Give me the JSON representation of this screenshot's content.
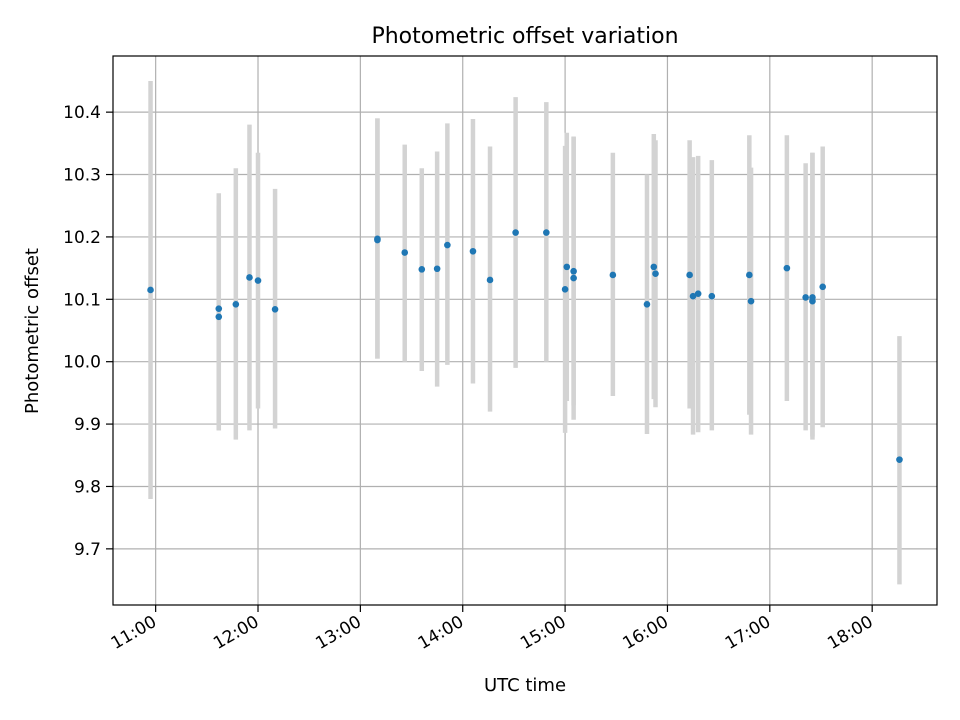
{
  "chart_data": {
    "type": "scatter",
    "title": "Photometric offset variation",
    "xlabel": "UTC time",
    "ylabel": "Photometric offset",
    "x_ticks": [
      "11:00",
      "12:00",
      "13:00",
      "14:00",
      "15:00",
      "16:00",
      "17:00",
      "18:00"
    ],
    "y_ticks": [
      "9.7",
      "9.8",
      "9.9",
      "10.0",
      "10.1",
      "10.2",
      "10.3",
      "10.4"
    ],
    "xlim": [
      "10:35",
      "18:38"
    ],
    "ylim": [
      9.61,
      10.49
    ],
    "grid": true,
    "colors": {
      "points": "#1f77b4",
      "error_bars": "#d3d3d3",
      "grid": "#b0b0b0"
    },
    "points": [
      {
        "x": "10:57",
        "y": 10.115,
        "yerr": [
          9.78,
          10.45
        ]
      },
      {
        "x": "11:37",
        "y": 10.072,
        "yerr": [
          9.89,
          10.25
        ]
      },
      {
        "x": "11:37",
        "y": 10.085,
        "yerr": [
          9.89,
          10.27
        ]
      },
      {
        "x": "11:47",
        "y": 10.092,
        "yerr": [
          9.875,
          10.31
        ]
      },
      {
        "x": "11:55",
        "y": 10.135,
        "yerr": [
          9.89,
          10.38
        ]
      },
      {
        "x": "12:00",
        "y": 10.13,
        "yerr": [
          9.925,
          10.335
        ]
      },
      {
        "x": "12:10",
        "y": 10.084,
        "yerr": [
          9.893,
          10.277
        ]
      },
      {
        "x": "13:10",
        "y": 10.197,
        "yerr": [
          10.005,
          10.39
        ]
      },
      {
        "x": "13:10",
        "y": 10.195,
        "yerr": [
          10.005,
          10.39
        ]
      },
      {
        "x": "13:26",
        "y": 10.175,
        "yerr": [
          10.0,
          10.348
        ]
      },
      {
        "x": "13:36",
        "y": 10.148,
        "yerr": [
          9.985,
          10.31
        ]
      },
      {
        "x": "13:45",
        "y": 10.149,
        "yerr": [
          9.96,
          10.337
        ]
      },
      {
        "x": "13:51",
        "y": 10.187,
        "yerr": [
          9.995,
          10.382
        ]
      },
      {
        "x": "14:06",
        "y": 10.177,
        "yerr": [
          9.965,
          10.389
        ]
      },
      {
        "x": "14:16",
        "y": 10.131,
        "yerr": [
          9.92,
          10.345
        ]
      },
      {
        "x": "14:31",
        "y": 10.207,
        "yerr": [
          9.99,
          10.424
        ]
      },
      {
        "x": "14:49",
        "y": 10.207,
        "yerr": [
          10.0,
          10.416
        ]
      },
      {
        "x": "15:00",
        "y": 10.116,
        "yerr": [
          9.886,
          10.346
        ]
      },
      {
        "x": "15:01",
        "y": 10.152,
        "yerr": [
          9.937,
          10.367
        ]
      },
      {
        "x": "15:05",
        "y": 10.134,
        "yerr": [
          9.907,
          10.361
        ]
      },
      {
        "x": "15:05",
        "y": 10.145,
        "yerr": [
          9.93,
          10.36
        ]
      },
      {
        "x": "15:28",
        "y": 10.139,
        "yerr": [
          9.945,
          10.335
        ]
      },
      {
        "x": "15:48",
        "y": 10.092,
        "yerr": [
          9.884,
          10.3
        ]
      },
      {
        "x": "15:52",
        "y": 10.152,
        "yerr": [
          9.94,
          10.365
        ]
      },
      {
        "x": "15:53",
        "y": 10.141,
        "yerr": [
          9.927,
          10.355
        ]
      },
      {
        "x": "16:13",
        "y": 10.139,
        "yerr": [
          9.925,
          10.355
        ]
      },
      {
        "x": "16:15",
        "y": 10.105,
        "yerr": [
          9.883,
          10.328
        ]
      },
      {
        "x": "16:18",
        "y": 10.109,
        "yerr": [
          9.887,
          10.33
        ]
      },
      {
        "x": "16:26",
        "y": 10.105,
        "yerr": [
          9.89,
          10.323
        ]
      },
      {
        "x": "16:48",
        "y": 10.139,
        "yerr": [
          9.915,
          10.363
        ]
      },
      {
        "x": "16:49",
        "y": 10.097,
        "yerr": [
          9.883,
          10.311
        ]
      },
      {
        "x": "17:10",
        "y": 10.15,
        "yerr": [
          9.937,
          10.363
        ]
      },
      {
        "x": "17:21",
        "y": 10.103,
        "yerr": [
          9.89,
          10.318
        ]
      },
      {
        "x": "17:25",
        "y": 10.097,
        "yerr": [
          9.875,
          10.335
        ]
      },
      {
        "x": "17:25",
        "y": 10.103,
        "yerr": [
          9.88,
          10.335
        ]
      },
      {
        "x": "17:31",
        "y": 10.12,
        "yerr": [
          9.895,
          10.345
        ]
      },
      {
        "x": "18:16",
        "y": 9.843,
        "yerr": [
          9.643,
          10.041
        ]
      }
    ]
  }
}
